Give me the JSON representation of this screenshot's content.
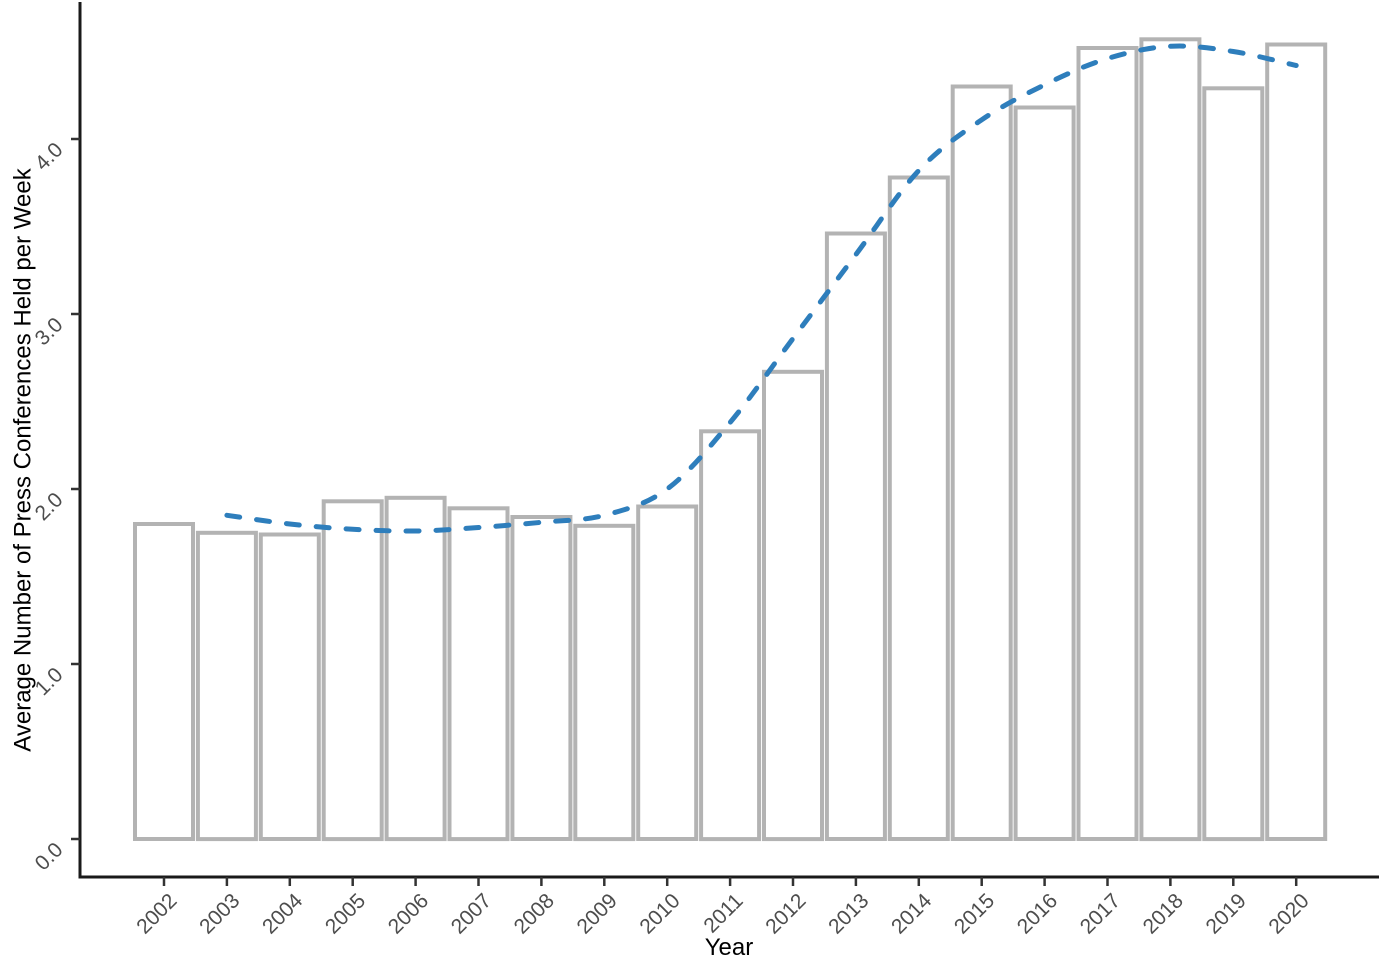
{
  "chart_data": {
    "type": "bar",
    "title": "",
    "xlabel": "Year",
    "ylabel": "Average Number of Press Conferences Held per Week",
    "categories": [
      "2002",
      "2003",
      "2004",
      "2005",
      "2006",
      "2007",
      "2008",
      "2009",
      "2010",
      "2011",
      "2012",
      "2013",
      "2014",
      "2015",
      "2016",
      "2017",
      "2018",
      "2019",
      "2020"
    ],
    "values": [
      1.8,
      1.75,
      1.74,
      1.93,
      1.95,
      1.89,
      1.84,
      1.79,
      1.9,
      2.33,
      2.67,
      3.46,
      3.78,
      4.3,
      4.18,
      4.52,
      4.57,
      4.29,
      4.54
    ],
    "trend_line": {
      "name": "loess-smoothed-trend",
      "style": "dashed",
      "color": "#2e7ebc",
      "x": [
        "2003",
        "2004",
        "2005",
        "2006",
        "2007",
        "2008",
        "2009",
        "2010",
        "2011",
        "2012",
        "2013",
        "2014",
        "2015",
        "2016",
        "2017",
        "2018",
        "2019",
        "2020"
      ],
      "values": [
        1.85,
        1.8,
        1.77,
        1.76,
        1.78,
        1.81,
        1.85,
        2.0,
        2.38,
        2.86,
        3.34,
        3.82,
        4.11,
        4.31,
        4.46,
        4.53,
        4.5,
        4.42
      ]
    },
    "ylim": [
      0,
      4.85
    ],
    "yticks": [
      "0.0",
      "1.0",
      "2.0",
      "3.0",
      "4.0"
    ],
    "grid": false,
    "legend_position": "none",
    "bar_fill": "#ffffff",
    "bar_stroke": "#b3b3b3",
    "colors": {
      "axis_line": "#1a1a1a",
      "tick_mark": "#333333",
      "tick_label": "#4d4d4d",
      "axis_title": "#000000",
      "background": "#ffffff"
    }
  }
}
